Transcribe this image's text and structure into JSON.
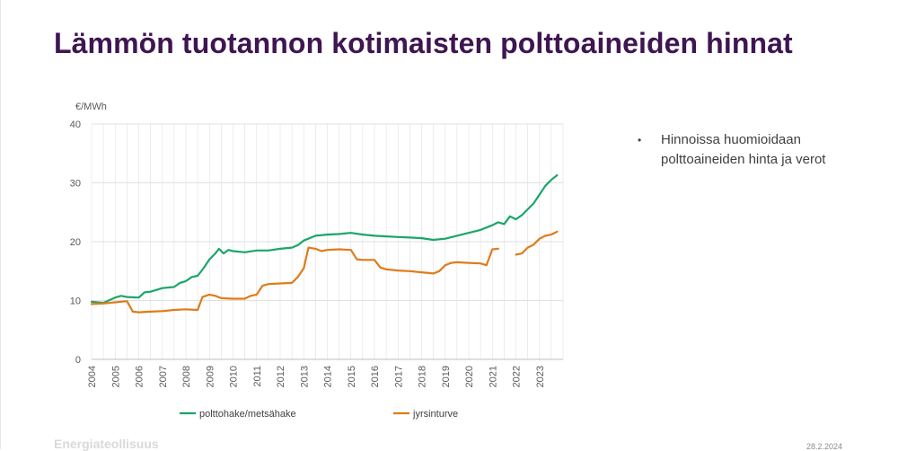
{
  "slide": {
    "title": "Lämmön tuotannon kotimaisten polttoaineiden hinnat",
    "bullet": "Hinnoissa huomioidaan polttoaineiden hinta ja verot",
    "footer_logo": "Energiateollisuus",
    "footer_date": "28.2.2024"
  },
  "colors": {
    "title": "#3f1552",
    "series_green": "#1aa66a",
    "series_orange": "#e07b1a",
    "grid": "#e0e0e0"
  },
  "chart_data": {
    "type": "line",
    "ylabel": "€/MWh",
    "xlabel": "",
    "xlim": [
      2004,
      2024
    ],
    "ylim": [
      0,
      40
    ],
    "yticks": [
      0,
      10,
      20,
      30,
      40
    ],
    "xticks": [
      "2004",
      "2005",
      "2006",
      "2007",
      "2008",
      "2009",
      "2010",
      "2011",
      "2012",
      "2013",
      "2014",
      "2015",
      "2016",
      "2017",
      "2018",
      "2019",
      "2020",
      "2021",
      "2022",
      "2023"
    ],
    "grid": true,
    "legend_position": "bottom",
    "series": [
      {
        "name": "polttohake/metsähake",
        "color": "#1aa66a",
        "points": [
          [
            2004.0,
            9.8
          ],
          [
            2004.5,
            9.6
          ],
          [
            2005.0,
            10.5
          ],
          [
            2005.25,
            10.8
          ],
          [
            2005.5,
            10.6
          ],
          [
            2006.0,
            10.5
          ],
          [
            2006.25,
            11.4
          ],
          [
            2006.5,
            11.5
          ],
          [
            2007.0,
            12.1
          ],
          [
            2007.5,
            12.3
          ],
          [
            2007.75,
            13.0
          ],
          [
            2008.0,
            13.3
          ],
          [
            2008.25,
            14.0
          ],
          [
            2008.5,
            14.2
          ],
          [
            2008.75,
            15.5
          ],
          [
            2009.0,
            17.0
          ],
          [
            2009.25,
            18.0
          ],
          [
            2009.4,
            18.8
          ],
          [
            2009.6,
            18.0
          ],
          [
            2009.8,
            18.6
          ],
          [
            2010.0,
            18.4
          ],
          [
            2010.5,
            18.2
          ],
          [
            2011.0,
            18.5
          ],
          [
            2011.5,
            18.5
          ],
          [
            2012.0,
            18.8
          ],
          [
            2012.5,
            19.0
          ],
          [
            2012.75,
            19.4
          ],
          [
            2013.0,
            20.2
          ],
          [
            2013.25,
            20.6
          ],
          [
            2013.5,
            21.0
          ],
          [
            2014.0,
            21.2
          ],
          [
            2014.5,
            21.3
          ],
          [
            2015.0,
            21.5
          ],
          [
            2015.5,
            21.2
          ],
          [
            2016.0,
            21.0
          ],
          [
            2016.5,
            20.9
          ],
          [
            2017.0,
            20.8
          ],
          [
            2017.5,
            20.7
          ],
          [
            2018.0,
            20.6
          ],
          [
            2018.5,
            20.3
          ],
          [
            2019.0,
            20.5
          ],
          [
            2019.5,
            21.0
          ],
          [
            2020.0,
            21.5
          ],
          [
            2020.5,
            22.0
          ],
          [
            2021.0,
            22.8
          ],
          [
            2021.25,
            23.3
          ],
          [
            2021.5,
            23.0
          ],
          [
            2021.75,
            24.3
          ],
          [
            2022.0,
            23.8
          ],
          [
            2022.25,
            24.5
          ],
          [
            2022.5,
            25.5
          ],
          [
            2022.75,
            26.5
          ],
          [
            2023.0,
            28.0
          ],
          [
            2023.25,
            29.5
          ],
          [
            2023.5,
            30.5
          ],
          [
            2023.75,
            31.3
          ]
        ]
      },
      {
        "name": "jyrsinturve",
        "color": "#e07b1a",
        "points": [
          [
            2004.0,
            9.4
          ],
          [
            2004.5,
            9.5
          ],
          [
            2005.0,
            9.7
          ],
          [
            2005.5,
            9.9
          ],
          [
            2005.75,
            8.1
          ],
          [
            2006.0,
            8.0
          ],
          [
            2006.5,
            8.1
          ],
          [
            2007.0,
            8.2
          ],
          [
            2007.5,
            8.4
          ],
          [
            2008.0,
            8.5
          ],
          [
            2008.5,
            8.4
          ],
          [
            2008.7,
            10.6
          ],
          [
            2009.0,
            11.0
          ],
          [
            2009.25,
            10.8
          ],
          [
            2009.5,
            10.4
          ],
          [
            2010.0,
            10.3
          ],
          [
            2010.5,
            10.3
          ],
          [
            2010.75,
            10.8
          ],
          [
            2011.0,
            11.0
          ],
          [
            2011.25,
            12.5
          ],
          [
            2011.5,
            12.8
          ],
          [
            2012.0,
            12.9
          ],
          [
            2012.5,
            13.0
          ],
          [
            2012.75,
            14.0
          ],
          [
            2013.0,
            15.5
          ],
          [
            2013.2,
            19.0
          ],
          [
            2013.5,
            18.8
          ],
          [
            2013.75,
            18.4
          ],
          [
            2014.0,
            18.6
          ],
          [
            2014.5,
            18.7
          ],
          [
            2015.0,
            18.6
          ],
          [
            2015.25,
            17.0
          ],
          [
            2015.5,
            16.9
          ],
          [
            2016.0,
            16.9
          ],
          [
            2016.25,
            15.6
          ],
          [
            2016.5,
            15.3
          ],
          [
            2017.0,
            15.1
          ],
          [
            2017.5,
            15.0
          ],
          [
            2018.0,
            14.8
          ],
          [
            2018.5,
            14.6
          ],
          [
            2018.75,
            15.0
          ],
          [
            2019.0,
            16.0
          ],
          [
            2019.25,
            16.4
          ],
          [
            2019.5,
            16.5
          ],
          [
            2020.0,
            16.4
          ],
          [
            2020.5,
            16.3
          ],
          [
            2020.75,
            16.0
          ],
          [
            2021.0,
            18.7
          ],
          [
            2021.25,
            18.8
          ],
          null,
          [
            2022.0,
            17.8
          ],
          [
            2022.25,
            18.0
          ],
          [
            2022.5,
            19.0
          ],
          [
            2022.75,
            19.5
          ],
          [
            2023.0,
            20.5
          ],
          [
            2023.25,
            21.0
          ],
          [
            2023.5,
            21.2
          ],
          [
            2023.75,
            21.7
          ]
        ]
      }
    ]
  }
}
